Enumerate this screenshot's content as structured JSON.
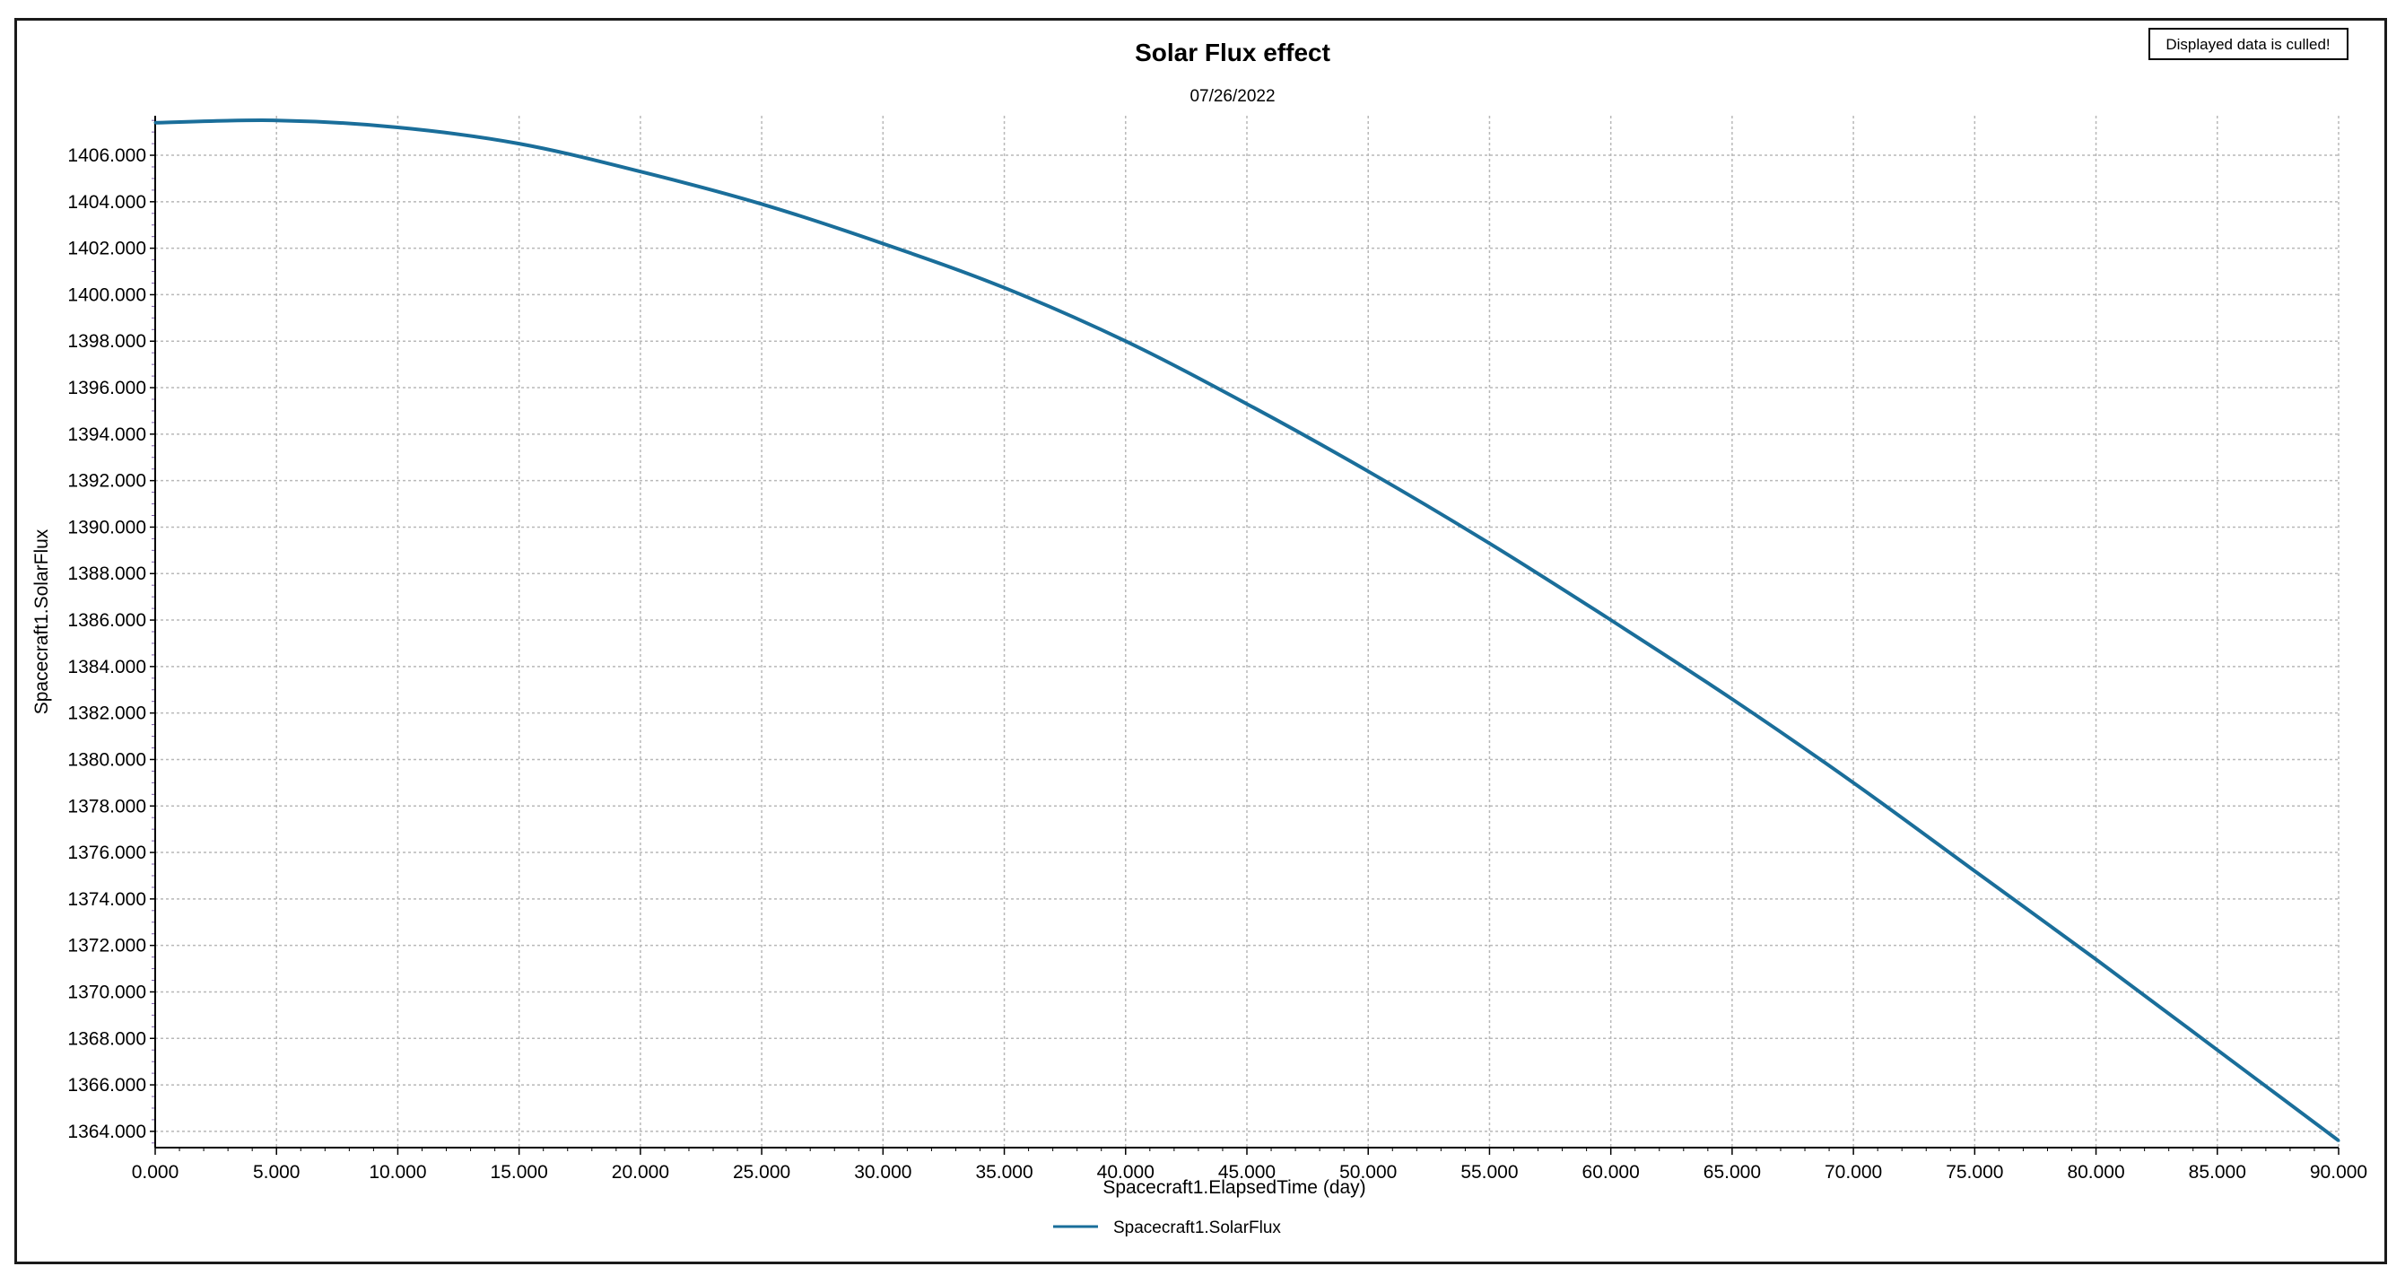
{
  "notice": "Displayed data is culled!",
  "chart_data": {
    "type": "line",
    "title": "Solar Flux effect",
    "subtitle": "07/26/2022",
    "xlabel": "Spacecraft1.ElapsedTime (day)",
    "ylabel": "Spacecraft1.SolarFlux",
    "xlim": [
      0,
      90
    ],
    "ylim": [
      1363.3,
      1407.7
    ],
    "xticks": [
      0,
      5,
      10,
      15,
      20,
      25,
      30,
      35,
      40,
      45,
      50,
      55,
      60,
      65,
      70,
      75,
      80,
      85,
      90
    ],
    "xtick_labels": [
      "0.000",
      "5.000",
      "10.000",
      "15.000",
      "20.000",
      "25.000",
      "30.000",
      "35.000",
      "40.000",
      "45.000",
      "50.000",
      "55.000",
      "60.000",
      "65.000",
      "70.000",
      "75.000",
      "80.000",
      "85.000",
      "90.000"
    ],
    "yticks": [
      1364,
      1366,
      1368,
      1370,
      1372,
      1374,
      1376,
      1378,
      1380,
      1382,
      1384,
      1386,
      1388,
      1390,
      1392,
      1394,
      1396,
      1398,
      1400,
      1402,
      1404,
      1406
    ],
    "ytick_labels": [
      "1364.000",
      "1366.000",
      "1368.000",
      "1370.000",
      "1372.000",
      "1374.000",
      "1376.000",
      "1378.000",
      "1380.000",
      "1382.000",
      "1384.000",
      "1386.000",
      "1388.000",
      "1390.000",
      "1392.000",
      "1394.000",
      "1396.000",
      "1398.000",
      "1400.000",
      "1402.000",
      "1404.000",
      "1406.000"
    ],
    "grid": true,
    "legend_position": "bottom-center",
    "series": [
      {
        "name": "Spacecraft1.SolarFlux",
        "color": "#1a6e9a",
        "x": [
          0,
          5,
          10,
          15,
          20,
          25,
          30,
          35,
          40,
          45,
          50,
          55,
          60,
          65,
          70,
          75,
          80,
          85,
          90
        ],
        "y": [
          1407.4,
          1407.5,
          1407.2,
          1406.5,
          1405.3,
          1403.9,
          1402.2,
          1400.3,
          1398.0,
          1395.3,
          1392.4,
          1389.3,
          1386.0,
          1382.6,
          1379.0,
          1375.2,
          1371.4,
          1367.5,
          1363.6
        ]
      }
    ]
  }
}
